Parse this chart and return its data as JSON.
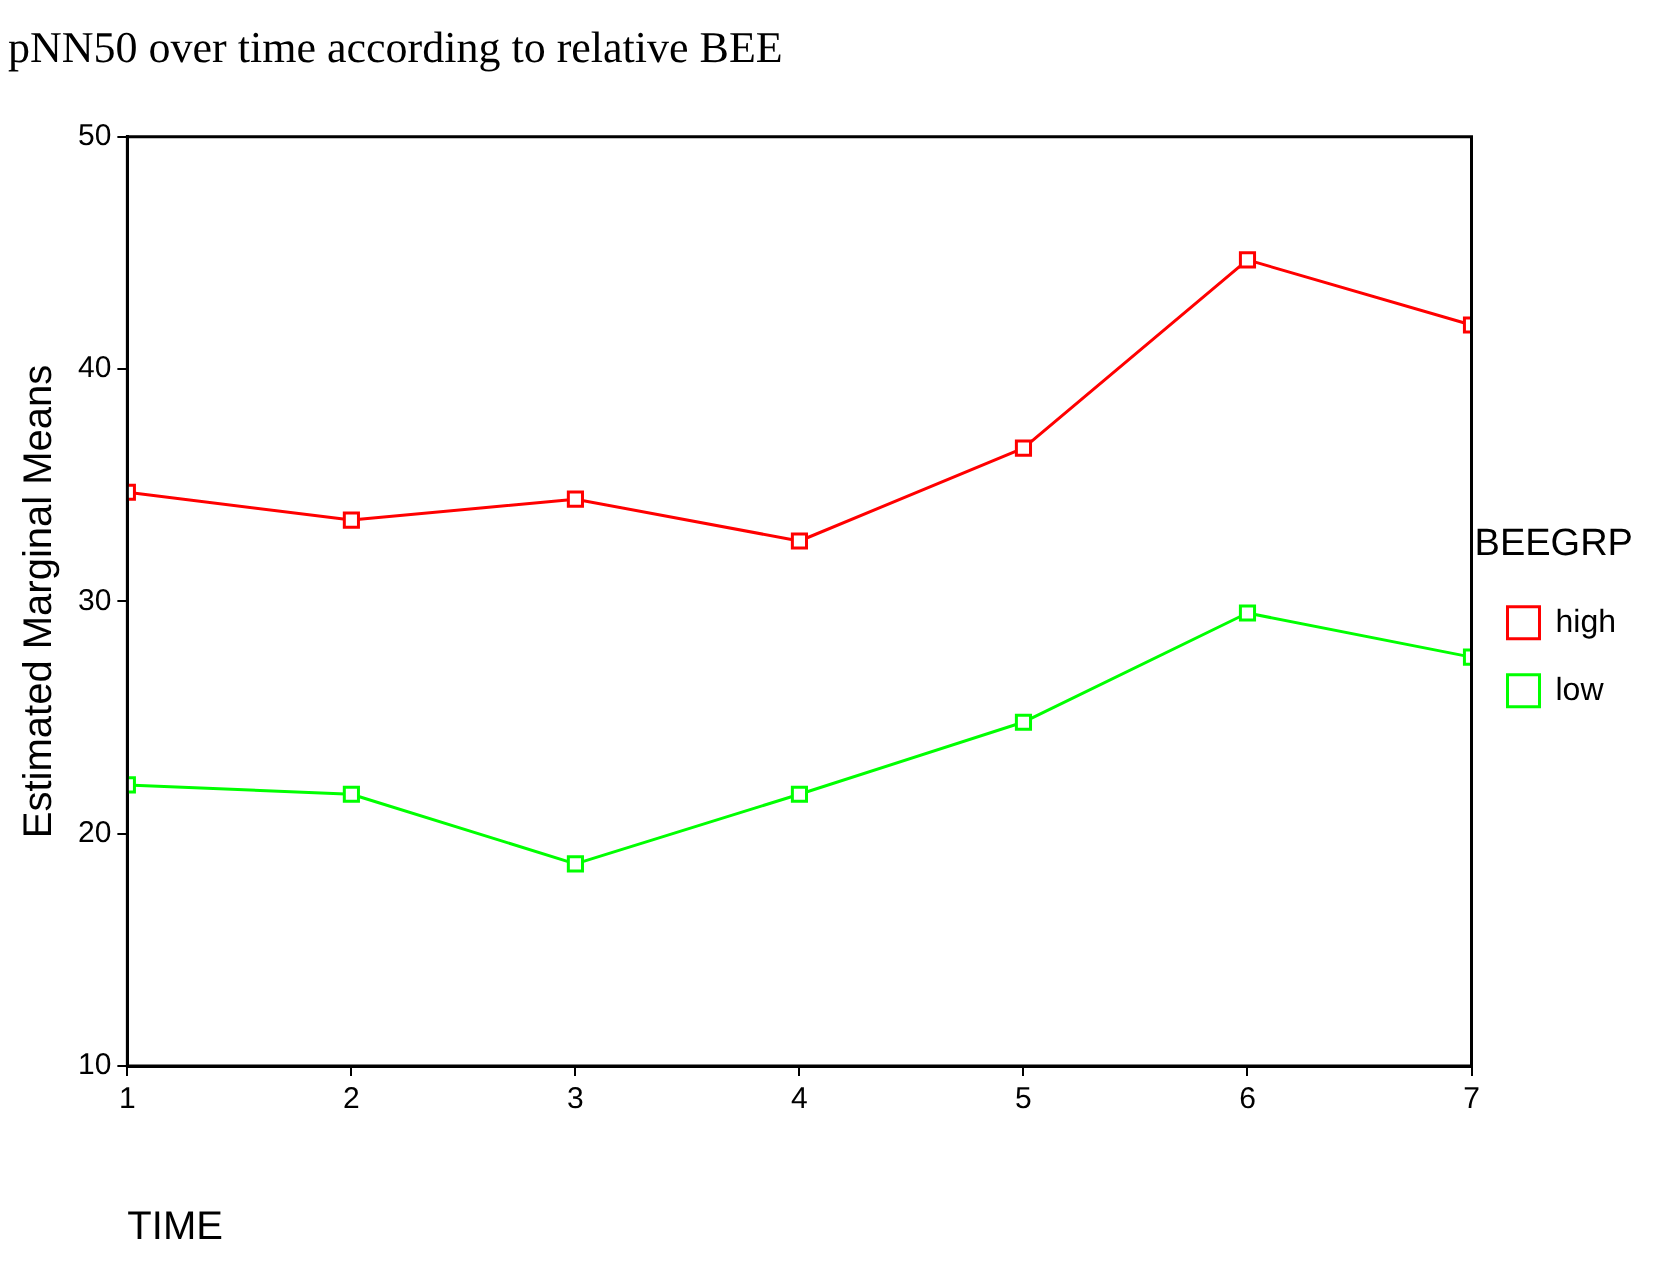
{
  "chart_data": {
    "type": "line",
    "title": "pNN50 over time according to relative BEE",
    "xlabel": "TIME",
    "ylabel": "Estimated Marginal Means",
    "legend_title": "BEEGRP",
    "x": [
      1,
      2,
      3,
      4,
      5,
      6,
      7
    ],
    "xlim": [
      1,
      7
    ],
    "xticks": [
      1,
      2,
      3,
      4,
      5,
      6,
      7
    ],
    "ylim": [
      10,
      50
    ],
    "yticks": [
      10,
      20,
      30,
      40,
      50
    ],
    "series": [
      {
        "name": "high",
        "color": "#ff0000",
        "values": [
          34.7,
          33.5,
          34.4,
          32.6,
          36.6,
          44.7,
          41.9
        ]
      },
      {
        "name": "low",
        "color": "#00ff00",
        "values": [
          22.1,
          21.7,
          18.7,
          21.7,
          24.8,
          29.5,
          27.6
        ]
      }
    ],
    "grid": false,
    "legend": "right",
    "marker": "square",
    "line_style": "solid"
  }
}
